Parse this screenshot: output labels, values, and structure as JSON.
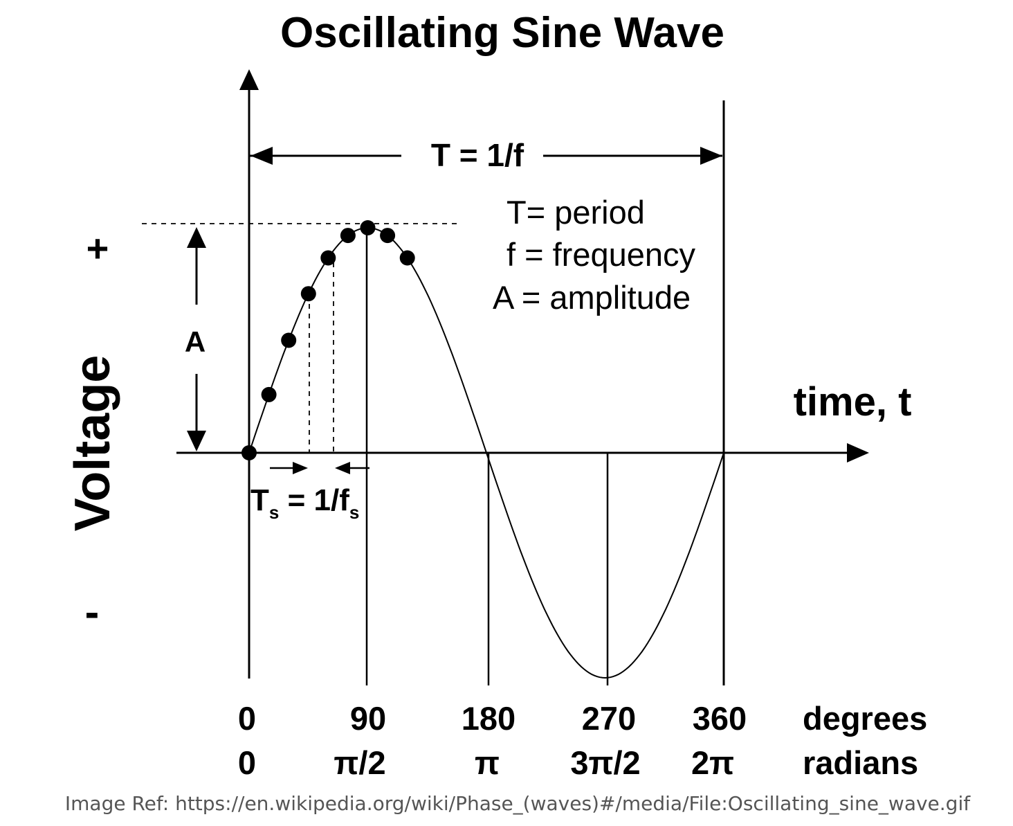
{
  "title": "Oscillating Sine Wave",
  "axes": {
    "y_label": "Voltage",
    "x_label": "time, t",
    "plus_sign": "+",
    "minus_sign": "-"
  },
  "period_label": "T = 1/f",
  "amplitude_label": "A",
  "legend": {
    "period": "T= period",
    "frequency": "f = frequency",
    "amplitude": "A = amplitude"
  },
  "sampling": {
    "T": "T",
    "sub1": "s",
    "eq": " = 1/f",
    "sub2": "s"
  },
  "ticks": {
    "degrees": [
      "0",
      "90",
      "180",
      "270",
      "360"
    ],
    "radians": [
      "0",
      "π/2",
      "π",
      "3π/2",
      "2π"
    ],
    "degrees_unit": "degrees",
    "radians_unit": "radians"
  },
  "chart_data": {
    "type": "line",
    "function": "sin",
    "x_degrees": [
      0,
      90,
      180,
      270,
      360
    ],
    "sample_points_degrees": [
      0,
      15,
      30,
      45,
      60,
      75,
      90,
      105,
      120
    ],
    "amplitude": 1
  },
  "reference": "Image Ref: https://en.wikipedia.org/wiki/Phase_(waves)#/media/File:Oscillating_sine_wave.gif"
}
